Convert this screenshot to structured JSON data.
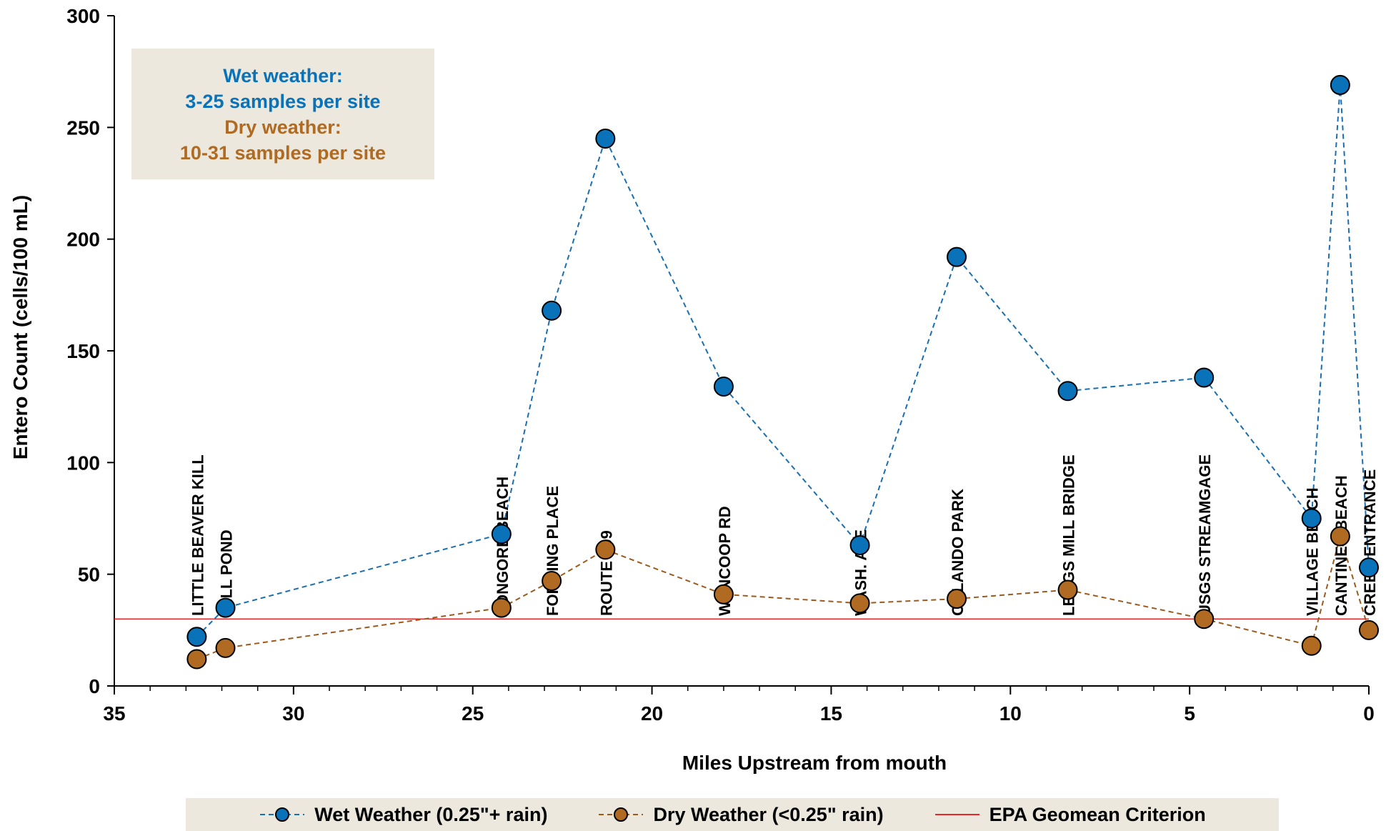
{
  "chart_data": {
    "type": "line",
    "xlabel": "Miles Upstream from mouth",
    "ylabel": "Entero Count (cells/100 mL)",
    "xlim": [
      35,
      0
    ],
    "ylim": [
      0,
      300
    ],
    "x_ticks": [
      35,
      30,
      25,
      20,
      15,
      10,
      5,
      0
    ],
    "y_ticks": [
      0,
      50,
      100,
      150,
      200,
      250,
      300
    ],
    "grid": false,
    "sites": [
      {
        "name": "LITTLE BEAVER KILL",
        "x": 32.7
      },
      {
        "name": "MILL POND",
        "x": 31.9
      },
      {
        "name": "TONGORE BEACH",
        "x": 24.2
      },
      {
        "name": "FORDING PLACE",
        "x": 22.8
      },
      {
        "name": "ROUTE 209",
        "x": 21.3
      },
      {
        "name": "WYNCOOP RD",
        "x": 18.0
      },
      {
        "name": "WASH. AVE",
        "x": 14.2
      },
      {
        "name": "ORLANDO PARK",
        "x": 11.5
      },
      {
        "name": "LEGGS MILL BRIDGE",
        "x": 8.4
      },
      {
        "name": "USGS STREAMGAGE",
        "x": 4.6
      },
      {
        "name": "VILLAGE BEACH",
        "x": 1.6
      },
      {
        "name": "CANTINES BEACH",
        "x": 0.8
      },
      {
        "name": "CREEK ENTRANCE",
        "x": 0.0
      }
    ],
    "series": [
      {
        "name": "Wet Weather (0.25\"+ rain)",
        "color": "#0a72b8",
        "line_color": "#1a6fb0",
        "x": [
          32.7,
          31.9,
          24.2,
          22.8,
          21.3,
          18.0,
          14.2,
          11.5,
          8.4,
          4.6,
          1.6,
          0.8,
          0.0
        ],
        "y": [
          22,
          35,
          68,
          168,
          245,
          134,
          63,
          192,
          132,
          138,
          75,
          269,
          53
        ]
      },
      {
        "name": "Dry Weather (<0.25\" rain)",
        "color": "#b06a22",
        "line_color": "#9c5a1c",
        "x": [
          32.7,
          31.9,
          24.2,
          22.8,
          21.3,
          18.0,
          14.2,
          11.5,
          8.4,
          4.6,
          1.6,
          0.8,
          0.0
        ],
        "y": [
          12,
          17,
          35,
          47,
          61,
          41,
          37,
          39,
          43,
          30,
          18,
          67,
          25
        ]
      }
    ],
    "reference_line": {
      "name": "EPA Geomean Criterion",
      "y": 30,
      "color": "#e8262a"
    },
    "annotation": {
      "lines": [
        {
          "text": "Wet weather:",
          "color": "#0a72b8"
        },
        {
          "text": "3-25 samples per site",
          "color": "#0a72b8"
        },
        {
          "text": "Dry weather:",
          "color": "#b06a22"
        },
        {
          "text": "10-31 samples per site",
          "color": "#b06a22"
        }
      ]
    },
    "legend_position": "bottom"
  }
}
